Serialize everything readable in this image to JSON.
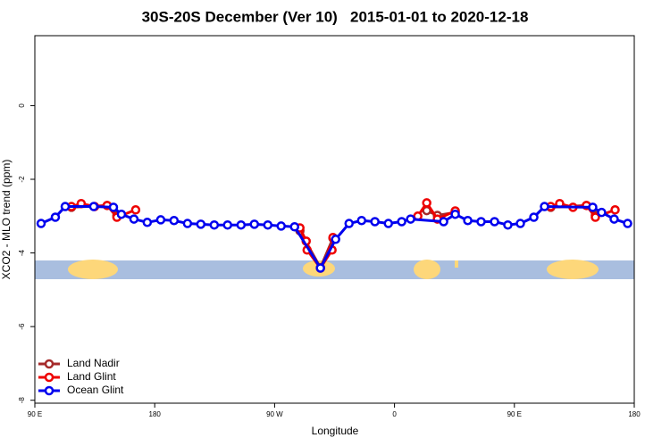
{
  "chart_data": {
    "type": "line",
    "title": "30S-20S December (Ver 10)   2015-01-01 to 2020-12-18",
    "xlabel": "Longitude",
    "ylabel": "XCO2 - MLO trend (ppm)",
    "xlim": [
      90,
      540
    ],
    "ylim": [
      -8.08,
      1.9
    ],
    "xticks": [
      {
        "value": 90,
        "label": "90 E"
      },
      {
        "value": 180,
        "label": "180"
      },
      {
        "value": 270,
        "label": "90 W"
      },
      {
        "value": 360,
        "label": "0"
      },
      {
        "value": 450,
        "label": "90 E"
      },
      {
        "value": 540,
        "label": "180"
      }
    ],
    "yticks": [
      0,
      -2,
      -4,
      -6,
      -8
    ],
    "legend": "lower left",
    "series": [
      {
        "name": "Land Nadir",
        "color": "#a52a2a",
        "x": [
          117.5,
          144.3,
          151.6,
          null,
          289.0,
          304.4,
          313.8,
          null,
          384.2,
          392.2,
          405.6,
          null,
          477.3,
          504.1,
          510.8
        ],
        "values": [
          -2.76,
          -2.71,
          -2.98,
          null,
          -3.4,
          -4.4,
          -3.6,
          null,
          -2.85,
          -2.98,
          -2.9,
          null,
          -2.76,
          -2.71,
          -2.98
        ]
      },
      {
        "name": "Land Glint",
        "color": "#ee0000",
        "x": [
          117.5,
          124.8,
          134.9,
          144.3,
          151.6,
          165.7,
          null,
          289.0,
          293.7,
          294.4,
          304.4,
          313.1,
          313.8,
          null,
          377.5,
          384.2,
          392.2,
          405.6,
          null,
          477.3,
          484.0,
          494.0,
          504.1,
          510.8,
          525.6
        ],
        "values": [
          -2.74,
          -2.66,
          -2.74,
          -2.71,
          -3.03,
          -2.83,
          null,
          -3.32,
          -3.68,
          -3.92,
          -4.41,
          -3.92,
          -3.58,
          null,
          -3.0,
          -2.64,
          -3.08,
          -2.86,
          null,
          -2.74,
          -2.66,
          -2.76,
          -2.71,
          -3.03,
          -2.83
        ]
      },
      {
        "name": "Ocean Glint",
        "color": "#0000ee",
        "x": [
          94.7,
          105.4,
          112.8,
          134.2,
          149.0,
          155.0,
          164.4,
          174.4,
          184.5,
          194.5,
          204.6,
          214.6,
          224.7,
          234.7,
          244.8,
          254.8,
          264.9,
          274.9,
          285.0,
          304.4,
          315.8,
          325.9,
          335.3,
          345.3,
          355.4,
          365.4,
          372.1,
          396.9,
          405.6,
          415.0,
          425.0,
          435.1,
          445.1,
          454.5,
          464.6,
          472.6,
          508.8,
          515.5,
          524.9,
          535.0
        ],
        "values": [
          -3.2,
          -3.03,
          -2.74,
          -2.74,
          -2.76,
          -2.95,
          -3.08,
          -3.17,
          -3.1,
          -3.12,
          -3.2,
          -3.22,
          -3.24,
          -3.24,
          -3.24,
          -3.22,
          -3.24,
          -3.27,
          -3.29,
          -4.41,
          -3.63,
          -3.2,
          -3.12,
          -3.15,
          -3.2,
          -3.15,
          -3.08,
          -3.15,
          -2.95,
          -3.12,
          -3.15,
          -3.15,
          -3.24,
          -3.2,
          -3.03,
          -2.74,
          -2.76,
          -2.9,
          -3.08,
          -3.2
        ]
      }
    ]
  }
}
